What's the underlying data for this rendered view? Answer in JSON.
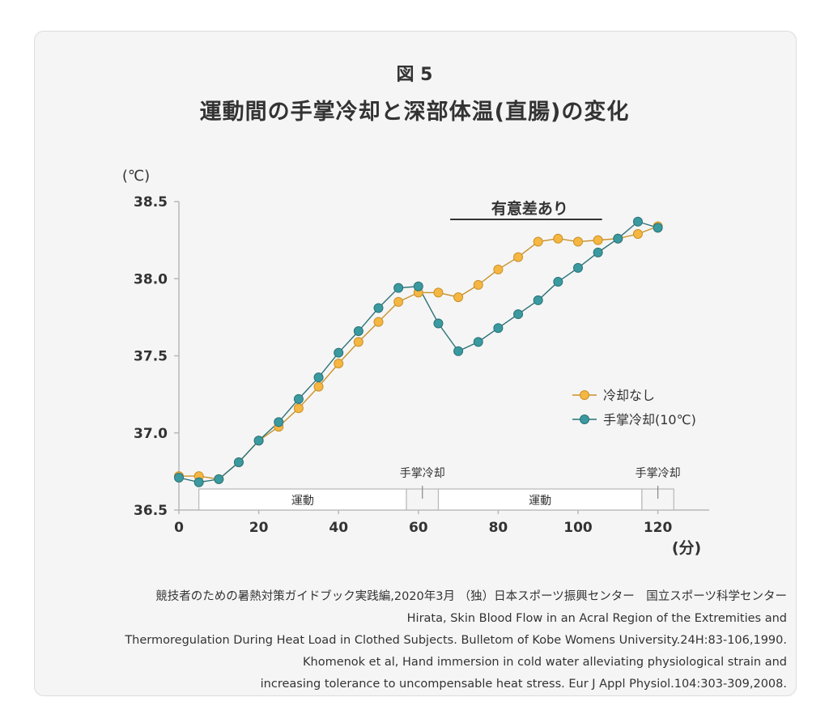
{
  "figure": {
    "label": "図 5",
    "title": "運動間の手掌冷却と深部体温(直腸)の変化"
  },
  "chart_data": {
    "type": "line",
    "x": [
      0,
      5,
      10,
      15,
      20,
      25,
      30,
      35,
      40,
      45,
      50,
      55,
      60,
      65,
      70,
      75,
      80,
      85,
      90,
      95,
      100,
      105,
      110,
      115,
      120
    ],
    "series": [
      {
        "name": "冷却なし",
        "color": "#f5b642",
        "stroke": "#c9922a",
        "values": [
          36.72,
          36.72,
          36.7,
          36.81,
          36.95,
          37.04,
          37.16,
          37.3,
          37.45,
          37.59,
          37.72,
          37.85,
          37.91,
          37.91,
          37.88,
          37.96,
          38.06,
          38.14,
          38.24,
          38.26,
          38.24,
          38.25,
          38.26,
          38.29,
          38.34
        ]
      },
      {
        "name": "手掌冷却(10℃)",
        "color": "#3a9aa0",
        "stroke": "#2b7277",
        "values": [
          36.71,
          36.68,
          36.7,
          36.81,
          36.95,
          37.07,
          37.22,
          37.36,
          37.52,
          37.66,
          37.81,
          37.94,
          37.95,
          37.71,
          37.53,
          37.59,
          37.68,
          37.77,
          37.86,
          37.98,
          38.07,
          38.17,
          38.26,
          38.37,
          38.33
        ]
      }
    ],
    "xlim": [
      0,
      132
    ],
    "ylim": [
      36.5,
      38.5
    ],
    "xticks": [
      0,
      20,
      40,
      60,
      80,
      100,
      120
    ],
    "xtick_labels": [
      "0",
      "20",
      "40",
      "60",
      "80",
      "100",
      "120"
    ],
    "yticks": [
      36.5,
      37.0,
      37.5,
      38.0,
      38.5
    ],
    "ytick_labels": [
      "36.5",
      "37.0",
      "37.5",
      "38.0",
      "38.5"
    ],
    "ylabel": "(℃)",
    "xlabel": "(分)",
    "legend": "right",
    "grid": false,
    "annotations": {
      "significance": {
        "text": "有意差あり",
        "x_start": 70,
        "x_end": 105
      },
      "exercise_periods": [
        {
          "text": "運動",
          "x_start": 5,
          "x_end": 57
        },
        {
          "text": "運動",
          "x_start": 65,
          "x_end": 116
        }
      ],
      "cooling_periods": [
        {
          "text": "手掌冷却",
          "x_start": 57,
          "x_end": 65
        },
        {
          "text": "手掌冷却",
          "x_start": 116,
          "x_end": 124
        }
      ]
    }
  },
  "references": [
    "競技者のための暑熱対策ガイドブック実践編,2020年3月 （独）日本スポーツ振興センター　国立スポーツ科学センター",
    "Hirata, Skin Blood Flow in an Acral Region of the Extremities and",
    "Thermoregulation During Heat Load in Clothed Subjects. Bulletom of Kobe Womens University.24H:83-106,1990.",
    "Khomenok et al, Hand immersion in cold water alleviating physiological strain and",
    "increasing tolerance to uncompensable heat stress. Eur J Appl Physiol.104:303-309,2008."
  ]
}
